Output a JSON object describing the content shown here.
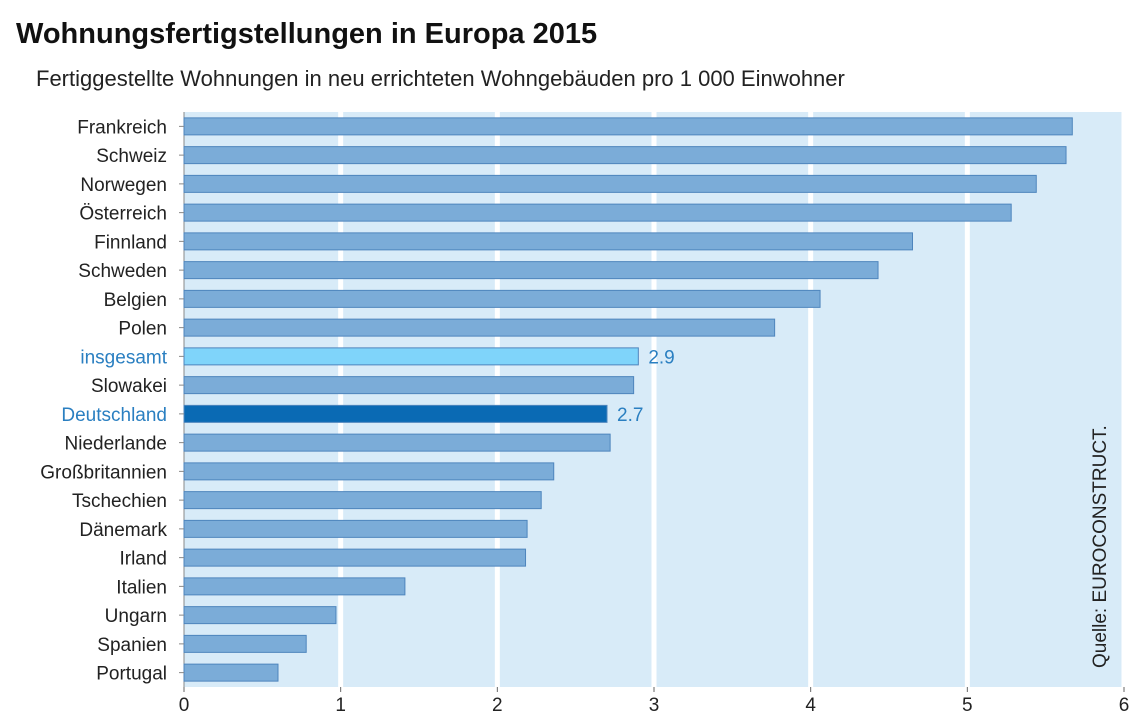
{
  "title": "Wohnungsfertigstellungen in Europa 2015",
  "subtitle": "Fertiggestellte Wohnungen in neu errichteten Wohngebäuden pro 1 000 Einwohner",
  "source": "Quelle: EUROCONSTRUCT.",
  "colors": {
    "background": "#d8ebf8",
    "bar": "#7bacd8",
    "bar_border": "#4e85bd",
    "highlight_total": "#7fd4fa",
    "highlight_germany": "#0a6ab4",
    "highlight_text": "#2a7fc1",
    "grid": "#ffffff"
  },
  "chart_data": {
    "type": "bar",
    "orientation": "horizontal",
    "categories": [
      "Frankreich",
      "Schweiz",
      "Norwegen",
      "Österreich",
      "Finnland",
      "Schweden",
      "Belgien",
      "Polen",
      "insgesamt",
      "Slowakei",
      "Deutschland",
      "Niederlande",
      "Großbritannien",
      "Tschechien",
      "Dänemark",
      "Irland",
      "Italien",
      "Ungarn",
      "Spanien",
      "Portugal"
    ],
    "values": [
      5.67,
      5.63,
      5.44,
      5.28,
      4.65,
      4.43,
      4.06,
      3.77,
      2.9,
      2.87,
      2.7,
      2.72,
      2.36,
      2.28,
      2.19,
      2.18,
      1.41,
      0.97,
      0.78,
      0.6
    ],
    "highlight": {
      "insgesamt": "total",
      "Deutschland": "germany"
    },
    "data_labels": [
      {
        "category": "insgesamt",
        "text": "2.9"
      },
      {
        "category": "Deutschland",
        "text": "2.7"
      }
    ],
    "xticks": [
      "0",
      "1",
      "2",
      "3",
      "4",
      "5",
      "6"
    ],
    "xlim": [
      0,
      6
    ],
    "grid": true,
    "xlabel": "",
    "ylabel": ""
  }
}
